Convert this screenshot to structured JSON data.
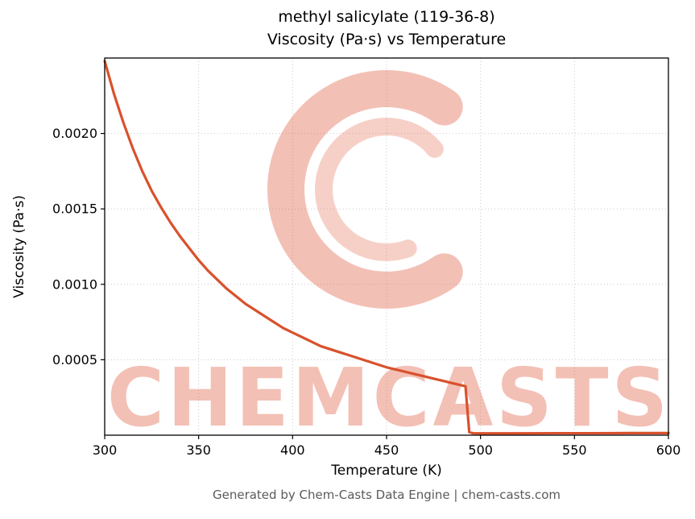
{
  "header": {
    "title_line1": "methyl salicylate (119-36-8)",
    "title_line2": "Viscosity (Pa·s) vs Temperature"
  },
  "footer": {
    "text": "Generated by Chem-Casts Data Engine | chem-casts.com"
  },
  "chart_data": {
    "type": "line",
    "title": "methyl salicylate (119-36-8) — Viscosity (Pa·s) vs Temperature",
    "xlabel": "Temperature (K)",
    "ylabel": "Viscosity (Pa·s)",
    "xlim": [
      300,
      600
    ],
    "ylim": [
      0,
      0.0025
    ],
    "xticks": [
      300,
      350,
      400,
      450,
      500,
      550,
      600
    ],
    "xtick_labels": [
      "300",
      "350",
      "400",
      "450",
      "500",
      "550",
      "600"
    ],
    "yticks": [
      0.0005,
      0.001,
      0.0015,
      0.002
    ],
    "ytick_labels": [
      "0.0005",
      "0.0010",
      "0.0015",
      "0.0020"
    ],
    "grid": true,
    "grid_color": "#c9c9c9",
    "line_color": "#d9512c",
    "watermark_text": "CHEMCASTS",
    "watermark_color": "rgba(224, 98, 70, 0.40)",
    "legend": "none",
    "series": [
      {
        "name": "viscosity",
        "x": [
          300,
          305,
          310,
          315,
          320,
          325,
          330,
          335,
          340,
          345,
          350,
          355,
          360,
          365,
          370,
          375,
          380,
          385,
          390,
          395,
          400,
          405,
          410,
          415,
          420,
          425,
          430,
          435,
          440,
          445,
          450,
          455,
          460,
          465,
          470,
          475,
          480,
          485,
          490,
          492,
          494,
          496,
          500,
          520,
          540,
          560,
          580,
          600
        ],
        "y": [
          0.00248,
          0.00226,
          0.00207,
          0.0019,
          0.00175,
          0.00162,
          0.00151,
          0.00141,
          0.00132,
          0.00124,
          0.00116,
          0.00109,
          0.00103,
          0.00097,
          0.00092,
          0.00087,
          0.00083,
          0.00079,
          0.00075,
          0.00071,
          0.00068,
          0.00065,
          0.00062,
          0.00059,
          0.00057,
          0.00055,
          0.00053,
          0.00051,
          0.00049,
          0.00047,
          0.00045,
          0.000435,
          0.00042,
          0.000405,
          0.00039,
          0.000375,
          0.00036,
          0.000345,
          0.00033,
          0.000325,
          2e-05,
          1.3e-05,
          1.2e-05,
          1.2e-05,
          1.3e-05,
          1.3e-05,
          1.4e-05,
          1.4e-05
        ]
      }
    ]
  }
}
